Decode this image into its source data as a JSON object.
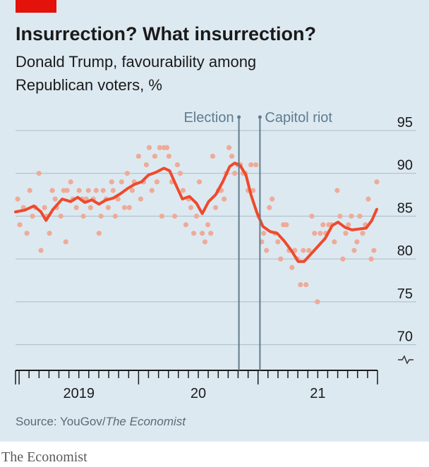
{
  "chart_data": {
    "type": "line",
    "title": "Insurrection? What insurrection?",
    "subtitle": [
      "Donald Trump, favourability among",
      "Republican voters, %"
    ],
    "source": [
      "Source: YouGov/",
      "The Economist"
    ],
    "brand": "The Economist",
    "xlim": [
      2018.97,
      2022.0
    ],
    "ylim": [
      67,
      95
    ],
    "yticks": [
      70,
      75,
      80,
      85,
      90,
      95
    ],
    "grid": true,
    "xticks": [
      2019,
      2019.083,
      2019.167,
      2019.25,
      2019.333,
      2019.417,
      2019.5,
      2019.583,
      2019.667,
      2019.75,
      2019.833,
      2019.917,
      2020,
      2020.083,
      2020.167,
      2020.25,
      2020.333,
      2020.417,
      2020.5,
      2020.583,
      2020.667,
      2020.75,
      2020.833,
      2020.917,
      2021,
      2021.083,
      2021.167,
      2021.25,
      2021.333,
      2021.417,
      2021.5,
      2021.583,
      2021.667,
      2021.75,
      2021.833,
      2021.917,
      2022
    ],
    "xlabels": [
      {
        "value": 2019.5,
        "label": "2019"
      },
      {
        "value": 2020.5,
        "label": "20"
      },
      {
        "value": 2021.5,
        "label": "21"
      }
    ],
    "annotations": [
      {
        "label": "Election",
        "x": 2020.84
      },
      {
        "label": "Capitol riot",
        "x": 2021.016
      }
    ],
    "series": [
      {
        "type": "scatter",
        "color": "#eeab98",
        "x": [
          2018.988,
          2019.006,
          2019.036,
          2019.065,
          2019.089,
          2019.112,
          2019.136,
          2019.166,
          2019.183,
          2019.213,
          2019.231,
          2019.254,
          2019.278,
          2019.302,
          2019.314,
          2019.349,
          2019.373,
          2019.391,
          2019.402,
          2019.432,
          2019.45,
          2019.479,
          2019.503,
          2019.527,
          2019.538,
          2019.562,
          2019.58,
          2019.598,
          2019.621,
          2019.645,
          2019.669,
          2019.686,
          2019.704,
          2019.728,
          2019.746,
          2019.775,
          2019.787,
          2019.805,
          2019.828,
          2019.858,
          2019.882,
          2019.905,
          2019.923,
          2019.947,
          2019.964,
          2020.0,
          2020.018,
          2020.041,
          2020.065,
          2020.089,
          2020.112,
          2020.136,
          2020.154,
          2020.177,
          2020.195,
          2020.213,
          2020.237,
          2020.254,
          2020.278,
          2020.302,
          2020.325,
          2020.349,
          2020.373,
          2020.396,
          2020.42,
          2020.438,
          2020.462,
          2020.485,
          2020.509,
          2020.533,
          2020.556,
          2020.58,
          2020.604,
          2020.621,
          2020.645,
          2020.669,
          2020.692,
          2020.716,
          2020.734,
          2020.757,
          2020.781,
          2020.805,
          2020.828,
          2020.852,
          2020.876,
          2020.893,
          2020.917,
          2020.941,
          2020.959,
          2020.982,
          2021.006,
          2021.03,
          2021.047,
          2021.071,
          2021.095,
          2021.118,
          2021.142,
          2021.166,
          2021.189,
          2021.213,
          2021.237,
          2021.26,
          2021.284,
          2021.308,
          2021.331,
          2021.355,
          2021.379,
          2021.402,
          2021.426,
          2021.45,
          2021.473,
          2021.497,
          2021.521,
          2021.544,
          2021.568,
          2021.592,
          2021.615,
          2021.639,
          2021.663,
          2021.686,
          2021.71,
          2021.734,
          2021.757,
          2021.781,
          2021.805,
          2021.828,
          2021.852,
          2021.876,
          2021.899,
          2021.923,
          2021.947,
          2021.97,
          2021.994
        ],
        "values": [
          87,
          84,
          86,
          83,
          88,
          85,
          86,
          90,
          81,
          86,
          85,
          83,
          88,
          87,
          86,
          85,
          88,
          82,
          88,
          89,
          87,
          86,
          88,
          87,
          85,
          87,
          88,
          86,
          87,
          88,
          83,
          85,
          88,
          87,
          86,
          89,
          88,
          85,
          87,
          89,
          86,
          90,
          86,
          88,
          89,
          92,
          87,
          89,
          91,
          93,
          88,
          92,
          89,
          93,
          85,
          93,
          93,
          92,
          89,
          85,
          91,
          90,
          88,
          84,
          87,
          86,
          83,
          85,
          89,
          83,
          82,
          84,
          83,
          92,
          86,
          88,
          88,
          87,
          90,
          93,
          92,
          90,
          91,
          91,
          90,
          90,
          88,
          91,
          88,
          91,
          85,
          82,
          83,
          81,
          86,
          87,
          83,
          82,
          80,
          84,
          84,
          81,
          79,
          81,
          80,
          77,
          81,
          77,
          81,
          85,
          83,
          75,
          83,
          84,
          83,
          84,
          84,
          82,
          88,
          85,
          80,
          83,
          84,
          85,
          81,
          82,
          85,
          83,
          84,
          87,
          80,
          81,
          89
        ]
      },
      {
        "type": "line",
        "color": "#ee4a2c",
        "x": [
          2018.97,
          2019.047,
          2019.124,
          2019.183,
          2019.225,
          2019.284,
          2019.361,
          2019.432,
          2019.491,
          2019.55,
          2019.609,
          2019.669,
          2019.728,
          2019.787,
          2019.846,
          2019.905,
          2019.964,
          2020.024,
          2020.083,
          2020.142,
          2020.213,
          2020.26,
          2020.308,
          2020.367,
          2020.426,
          2020.485,
          2020.533,
          2020.586,
          2020.645,
          2020.704,
          2020.763,
          2020.805,
          2020.852,
          2020.899,
          2020.941,
          2020.988,
          2021.041,
          2021.101,
          2021.16,
          2021.219,
          2021.278,
          2021.337,
          2021.385,
          2021.444,
          2021.503,
          2021.562,
          2021.621,
          2021.669,
          2021.728,
          2021.787,
          2021.846,
          2021.905,
          2021.953,
          2021.994
        ],
        "values": [
          85.5,
          85.7,
          86.2,
          85.5,
          84.5,
          85.8,
          87.0,
          86.7,
          87.2,
          86.6,
          86.9,
          86.4,
          86.9,
          87.1,
          87.6,
          88.2,
          88.7,
          89.0,
          89.8,
          90.1,
          90.6,
          90.3,
          88.8,
          87.0,
          87.3,
          86.5,
          85.3,
          86.7,
          87.5,
          89.0,
          90.8,
          91.2,
          90.9,
          89.8,
          87.5,
          85.5,
          83.8,
          83.2,
          83.0,
          82.1,
          81.0,
          79.7,
          79.7,
          80.6,
          81.5,
          82.4,
          83.9,
          84.3,
          83.7,
          83.4,
          83.5,
          83.6,
          84.5,
          85.8
        ]
      }
    ]
  }
}
